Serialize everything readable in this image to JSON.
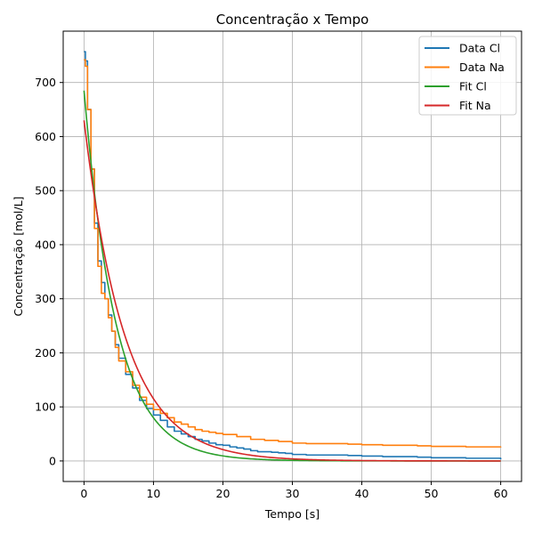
{
  "chart_data": {
    "type": "line",
    "title": "Concentração x Tempo",
    "xlabel": "Tempo [s]",
    "ylabel": "Concentração [mol/L]",
    "xlim": [
      -3,
      63
    ],
    "ylim": [
      -38,
      795
    ],
    "xticks": [
      0,
      10,
      20,
      30,
      40,
      50,
      60
    ],
    "yticks": [
      0,
      100,
      200,
      300,
      400,
      500,
      600,
      700
    ],
    "grid": true,
    "legend_position": "top-right",
    "series": [
      {
        "name": "Data Cl",
        "color": "#1f77b4",
        "step": true,
        "x": [
          0,
          0.2,
          0.5,
          1,
          1.5,
          2,
          2.5,
          3,
          3.5,
          4,
          4.5,
          5,
          6,
          7,
          8,
          9,
          10,
          11,
          12,
          13,
          14,
          15,
          16,
          17,
          18,
          19,
          20,
          21,
          22,
          23,
          24,
          25,
          26,
          27,
          28,
          29,
          30,
          32,
          35,
          38,
          40,
          43,
          45,
          48,
          50,
          53,
          55,
          58,
          60
        ],
        "y": [
          757,
          740,
          650,
          540,
          440,
          370,
          330,
          300,
          270,
          240,
          215,
          190,
          160,
          135,
          112,
          97,
          85,
          75,
          63,
          55,
          50,
          45,
          40,
          37,
          33,
          30,
          29,
          26,
          24,
          22,
          19,
          17,
          17,
          16,
          15,
          14,
          12,
          11,
          11,
          10,
          9,
          8,
          8,
          7,
          6,
          6,
          5,
          5,
          3
        ]
      },
      {
        "name": "Data Na",
        "color": "#ff7f0e",
        "step": true,
        "x": [
          0,
          0.2,
          0.5,
          1,
          1.5,
          2,
          2.5,
          3,
          3.5,
          4,
          4.5,
          5,
          6,
          7,
          8,
          9,
          10,
          11,
          12,
          13,
          14,
          15,
          16,
          17,
          18,
          19,
          20,
          22,
          24,
          26,
          28,
          30,
          32,
          35,
          38,
          40,
          43,
          45,
          48,
          50,
          53,
          55,
          58,
          60
        ],
        "y": [
          742,
          730,
          650,
          540,
          430,
          360,
          310,
          300,
          265,
          240,
          210,
          185,
          165,
          140,
          118,
          105,
          95,
          88,
          80,
          72,
          68,
          63,
          58,
          55,
          53,
          51,
          49,
          45,
          40,
          38,
          36,
          33,
          32,
          32,
          31,
          30,
          29,
          29,
          28,
          27,
          27,
          26,
          26,
          25
        ]
      },
      {
        "name": "Fit Cl",
        "color": "#2ca02c",
        "model": "exp",
        "a": 685,
        "k": 0.215,
        "x0": 0,
        "x1": 60
      },
      {
        "name": "Fit Na",
        "color": "#d62728",
        "model": "exp",
        "a": 630,
        "k": 0.17,
        "x0": 0,
        "x1": 60
      }
    ]
  }
}
